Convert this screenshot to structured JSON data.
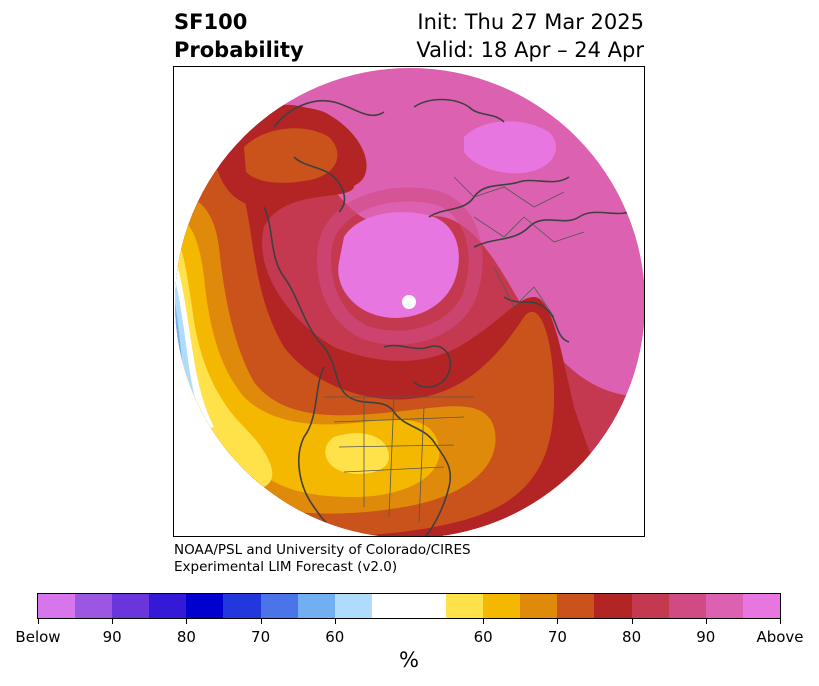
{
  "header": {
    "title_line1": "SF100",
    "title_line2": "Probability",
    "init_text": "Init: Thu 27 Mar 2025",
    "valid_text": "Valid: 18 Apr – 24 Apr"
  },
  "credit": {
    "line1": "NOAA/PSL and University of Colorado/CIRES",
    "line2": "Experimental LIM Forecast (v2.0)"
  },
  "colorbar": {
    "colors": [
      "#d675ec",
      "#9b57e1",
      "#6a35db",
      "#3419d6",
      "#0000cf",
      "#2338dc",
      "#4b74e9",
      "#72aef2",
      "#b0dcfc",
      "#ffffff",
      "#ffe14a",
      "#f5b800",
      "#e08a0c",
      "#c9531a",
      "#b32424",
      "#c4394f",
      "#d04b84",
      "#dc62b1",
      "#e876e0"
    ],
    "tick_labels": [
      "Below",
      "90",
      "80",
      "70",
      "60",
      "60",
      "70",
      "80",
      "90",
      "Above"
    ],
    "unit_label": "%"
  },
  "map": {
    "projection": "north-polar-stereographic",
    "category_colors": {
      "above_90": "#e876e0",
      "above_80": "#dc62b1",
      "above_70": "#c4394f",
      "above_60": "#b32424",
      "above_55": "#c9531a",
      "above_50": "#e08a0c",
      "above_45": "#f5b800",
      "above_40": "#ffe14a",
      "below_40": "#b0dcfc",
      "below_60": "#72aef2"
    }
  }
}
